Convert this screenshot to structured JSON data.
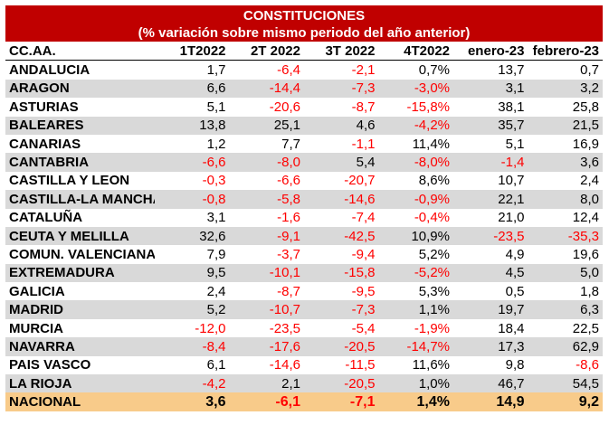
{
  "title_line1": "CONSTITUCIONES",
  "title_line2": "(% variación sobre mismo periodo del año anterior)",
  "headers": [
    "CC.AA.",
    "1T2022",
    "2T 2022",
    "3T 2022",
    "4T2022",
    "enero-23",
    "febrero-23"
  ],
  "rows": [
    {
      "name": "ANDALUCIA",
      "values": [
        "1,7",
        "-6,4",
        "-2,1",
        "0,7%",
        "13,7",
        "0,7"
      ]
    },
    {
      "name": "ARAGON",
      "values": [
        "6,6",
        "-14,4",
        "-7,3",
        "-3,0%",
        "3,1",
        "3,2"
      ]
    },
    {
      "name": "ASTURIAS",
      "values": [
        "5,1",
        "-20,6",
        "-8,7",
        "-15,8%",
        "38,1",
        "25,8"
      ]
    },
    {
      "name": "BALEARES",
      "values": [
        "13,8",
        "25,1",
        "4,6",
        "-4,2%",
        "35,7",
        "21,5"
      ]
    },
    {
      "name": "CANARIAS",
      "values": [
        "1,2",
        "7,7",
        "-1,1",
        "11,4%",
        "5,1",
        "16,9"
      ]
    },
    {
      "name": "CANTABRIA",
      "values": [
        "-6,6",
        "-8,0",
        "5,4",
        "-8,0%",
        "-1,4",
        "3,6"
      ]
    },
    {
      "name": "CASTILLA Y LEON",
      "values": [
        "-0,3",
        "-6,6",
        "-20,7",
        "8,6%",
        "10,7",
        "2,4"
      ]
    },
    {
      "name": "CASTILLA-LA MANCHA",
      "values": [
        "-0,8",
        "-5,8",
        "-14,6",
        "-0,9%",
        "22,1",
        "8,0"
      ]
    },
    {
      "name": "CATALUÑA",
      "values": [
        "3,1",
        "-1,6",
        "-7,4",
        "-0,4%",
        "21,0",
        "12,4"
      ]
    },
    {
      "name": "CEUTA Y MELILLA",
      "values": [
        "32,6",
        "-9,1",
        "-42,5",
        "10,9%",
        "-23,5",
        "-35,3"
      ]
    },
    {
      "name": "COMUN. VALENCIANA",
      "values": [
        "7,9",
        "-3,7",
        "-9,4",
        "5,2%",
        "4,9",
        "19,6"
      ]
    },
    {
      "name": "EXTREMADURA",
      "values": [
        "9,5",
        "-10,1",
        "-15,8",
        "-5,2%",
        "4,5",
        "5,0"
      ]
    },
    {
      "name": "GALICIA",
      "values": [
        "2,4",
        "-8,7",
        "-9,5",
        "5,3%",
        "0,5",
        "1,8"
      ]
    },
    {
      "name": "MADRID",
      "values": [
        "5,2",
        "-10,7",
        "-7,3",
        "1,1%",
        "19,7",
        "6,3"
      ]
    },
    {
      "name": "MURCIA",
      "values": [
        "-12,0",
        "-23,5",
        "-5,4",
        "-1,9%",
        "18,4",
        "22,5"
      ]
    },
    {
      "name": "NAVARRA",
      "values": [
        "-8,4",
        "-17,6",
        "-20,5",
        "-14,7%",
        "17,3",
        "62,9"
      ]
    },
    {
      "name": "PAIS VASCO",
      "values": [
        "6,1",
        "-14,6",
        "-11,5",
        "11,6%",
        "9,8",
        "-8,6"
      ]
    },
    {
      "name": "LA RIOJA",
      "values": [
        "-4,2",
        "2,1",
        "-20,5",
        "1,0%",
        "46,7",
        "54,5"
      ]
    }
  ],
  "total": {
    "name": "NACIONAL",
    "values": [
      "3,6",
      "-6,1",
      "-7,1",
      "1,4%",
      "14,9",
      "9,2"
    ]
  },
  "colors": {
    "title_bg": "#c00000",
    "negative": "#ff0000",
    "alt_row": "#d9d9d9",
    "total_bg": "#f8cb8a"
  }
}
